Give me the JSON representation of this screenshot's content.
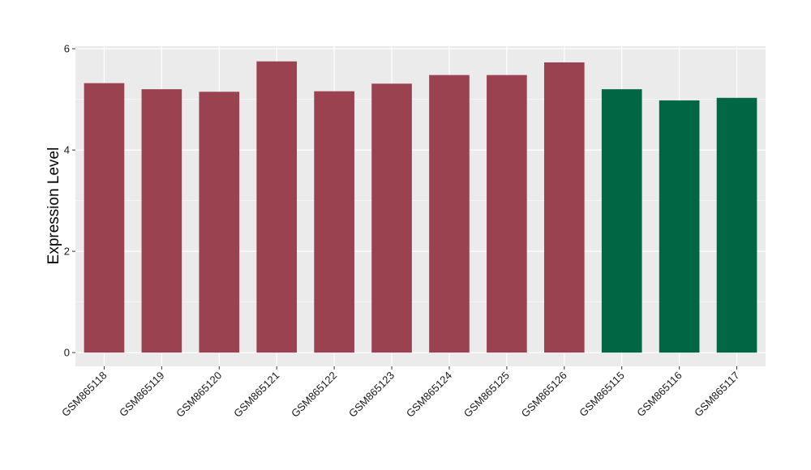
{
  "chart_data": {
    "type": "bar",
    "title": "",
    "xlabel": "",
    "ylabel": "Expression Level",
    "categories": [
      "GSM865118",
      "GSM865119",
      "GSM865120",
      "GSM865121",
      "GSM865122",
      "GSM865123",
      "GSM865124",
      "GSM865125",
      "GSM865126",
      "GSM865115",
      "GSM865116",
      "GSM865117"
    ],
    "values": [
      5.32,
      5.2,
      5.15,
      5.75,
      5.16,
      5.31,
      5.48,
      5.48,
      5.73,
      5.2,
      4.98,
      5.03
    ],
    "bar_colors": [
      "#9b4250",
      "#9b4250",
      "#9b4250",
      "#9b4250",
      "#9b4250",
      "#9b4250",
      "#9b4250",
      "#9b4250",
      "#9b4250",
      "#006644",
      "#006644",
      "#006644"
    ],
    "ylim": [
      -0.27,
      6.05
    ],
    "yticks": [
      0,
      2,
      4,
      6
    ],
    "grid": true,
    "legend": "none",
    "panel_background": "#ebebeb",
    "grid_color": "#ffffff"
  }
}
